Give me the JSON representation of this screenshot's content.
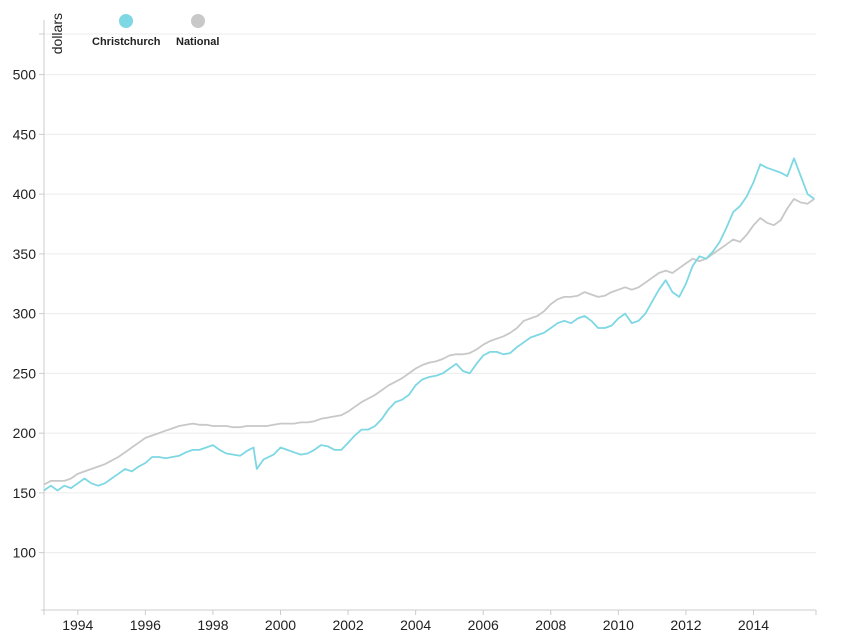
{
  "chart_data": {
    "type": "line",
    "ylabel": "dollars",
    "ylim": [
      52,
      534
    ],
    "xlim": [
      1993.0,
      2015.85
    ],
    "yticks": [
      100,
      150,
      200,
      250,
      300,
      350,
      400,
      450,
      500
    ],
    "xticks": [
      1994,
      1996,
      1998,
      2000,
      2002,
      2004,
      2006,
      2008,
      2010,
      2012,
      2014
    ],
    "grid": true,
    "legend_position": "top-left",
    "series": [
      {
        "name": "Christchurch",
        "color": "#7dd8e4",
        "points": [
          [
            1993.0,
            152
          ],
          [
            1993.2,
            156
          ],
          [
            1993.4,
            152
          ],
          [
            1993.6,
            156
          ],
          [
            1993.8,
            154
          ],
          [
            1994.0,
            158
          ],
          [
            1994.2,
            162
          ],
          [
            1994.4,
            158
          ],
          [
            1994.6,
            156
          ],
          [
            1994.8,
            158
          ],
          [
            1995.0,
            162
          ],
          [
            1995.2,
            166
          ],
          [
            1995.4,
            170
          ],
          [
            1995.6,
            168
          ],
          [
            1995.8,
            172
          ],
          [
            1996.0,
            175
          ],
          [
            1996.2,
            180
          ],
          [
            1996.4,
            180
          ],
          [
            1996.6,
            179
          ],
          [
            1996.8,
            180
          ],
          [
            1997.0,
            181
          ],
          [
            1997.2,
            184
          ],
          [
            1997.4,
            186
          ],
          [
            1997.6,
            186
          ],
          [
            1997.8,
            188
          ],
          [
            1998.0,
            190
          ],
          [
            1998.2,
            186
          ],
          [
            1998.4,
            183
          ],
          [
            1998.6,
            182
          ],
          [
            1998.8,
            181
          ],
          [
            1999.0,
            185
          ],
          [
            1999.2,
            188
          ],
          [
            1999.3,
            170
          ],
          [
            1999.5,
            178
          ],
          [
            1999.8,
            182
          ],
          [
            2000.0,
            188
          ],
          [
            2000.2,
            186
          ],
          [
            2000.4,
            184
          ],
          [
            2000.6,
            182
          ],
          [
            2000.8,
            183
          ],
          [
            2001.0,
            186
          ],
          [
            2001.2,
            190
          ],
          [
            2001.4,
            189
          ],
          [
            2001.6,
            186
          ],
          [
            2001.8,
            186
          ],
          [
            2002.0,
            192
          ],
          [
            2002.2,
            198
          ],
          [
            2002.4,
            203
          ],
          [
            2002.6,
            203
          ],
          [
            2002.8,
            206
          ],
          [
            2003.0,
            212
          ],
          [
            2003.2,
            220
          ],
          [
            2003.4,
            226
          ],
          [
            2003.6,
            228
          ],
          [
            2003.8,
            232
          ],
          [
            2004.0,
            240
          ],
          [
            2004.2,
            245
          ],
          [
            2004.4,
            247
          ],
          [
            2004.6,
            248
          ],
          [
            2004.8,
            250
          ],
          [
            2005.0,
            254
          ],
          [
            2005.2,
            258
          ],
          [
            2005.4,
            252
          ],
          [
            2005.6,
            250
          ],
          [
            2005.8,
            258
          ],
          [
            2006.0,
            265
          ],
          [
            2006.2,
            268
          ],
          [
            2006.4,
            268
          ],
          [
            2006.6,
            266
          ],
          [
            2006.8,
            267
          ],
          [
            2007.0,
            272
          ],
          [
            2007.2,
            276
          ],
          [
            2007.4,
            280
          ],
          [
            2007.6,
            282
          ],
          [
            2007.8,
            284
          ],
          [
            2008.0,
            288
          ],
          [
            2008.2,
            292
          ],
          [
            2008.4,
            294
          ],
          [
            2008.6,
            292
          ],
          [
            2008.8,
            296
          ],
          [
            2009.0,
            298
          ],
          [
            2009.2,
            294
          ],
          [
            2009.4,
            288
          ],
          [
            2009.6,
            288
          ],
          [
            2009.8,
            290
          ],
          [
            2010.0,
            296
          ],
          [
            2010.2,
            300
          ],
          [
            2010.4,
            292
          ],
          [
            2010.6,
            294
          ],
          [
            2010.8,
            300
          ],
          [
            2011.0,
            310
          ],
          [
            2011.2,
            320
          ],
          [
            2011.4,
            328
          ],
          [
            2011.6,
            318
          ],
          [
            2011.8,
            314
          ],
          [
            2012.0,
            325
          ],
          [
            2012.2,
            340
          ],
          [
            2012.4,
            348
          ],
          [
            2012.6,
            346
          ],
          [
            2012.8,
            352
          ],
          [
            2013.0,
            360
          ],
          [
            2013.2,
            372
          ],
          [
            2013.4,
            385
          ],
          [
            2013.6,
            390
          ],
          [
            2013.8,
            398
          ],
          [
            2014.0,
            410
          ],
          [
            2014.2,
            425
          ],
          [
            2014.4,
            422
          ],
          [
            2014.6,
            420
          ],
          [
            2014.8,
            418
          ],
          [
            2015.0,
            415
          ],
          [
            2015.2,
            430
          ],
          [
            2015.4,
            415
          ],
          [
            2015.6,
            400
          ],
          [
            2015.8,
            396
          ]
        ]
      },
      {
        "name": "National",
        "color": "#c8c8c8",
        "points": [
          [
            1993.0,
            157
          ],
          [
            1993.2,
            160
          ],
          [
            1993.4,
            160
          ],
          [
            1993.6,
            160
          ],
          [
            1993.8,
            162
          ],
          [
            1994.0,
            166
          ],
          [
            1994.2,
            168
          ],
          [
            1994.4,
            170
          ],
          [
            1994.6,
            172
          ],
          [
            1994.8,
            174
          ],
          [
            1995.0,
            177
          ],
          [
            1995.2,
            180
          ],
          [
            1995.4,
            184
          ],
          [
            1995.6,
            188
          ],
          [
            1995.8,
            192
          ],
          [
            1996.0,
            196
          ],
          [
            1996.2,
            198
          ],
          [
            1996.4,
            200
          ],
          [
            1996.6,
            202
          ],
          [
            1996.8,
            204
          ],
          [
            1997.0,
            206
          ],
          [
            1997.2,
            207
          ],
          [
            1997.4,
            208
          ],
          [
            1997.6,
            207
          ],
          [
            1997.8,
            207
          ],
          [
            1998.0,
            206
          ],
          [
            1998.2,
            206
          ],
          [
            1998.4,
            206
          ],
          [
            1998.6,
            205
          ],
          [
            1998.8,
            205
          ],
          [
            1999.0,
            206
          ],
          [
            1999.2,
            206
          ],
          [
            1999.4,
            206
          ],
          [
            1999.6,
            206
          ],
          [
            1999.8,
            207
          ],
          [
            2000.0,
            208
          ],
          [
            2000.2,
            208
          ],
          [
            2000.4,
            208
          ],
          [
            2000.6,
            209
          ],
          [
            2000.8,
            209
          ],
          [
            2001.0,
            210
          ],
          [
            2001.2,
            212
          ],
          [
            2001.4,
            213
          ],
          [
            2001.6,
            214
          ],
          [
            2001.8,
            215
          ],
          [
            2002.0,
            218
          ],
          [
            2002.2,
            222
          ],
          [
            2002.4,
            226
          ],
          [
            2002.6,
            229
          ],
          [
            2002.8,
            232
          ],
          [
            2003.0,
            236
          ],
          [
            2003.2,
            240
          ],
          [
            2003.4,
            243
          ],
          [
            2003.6,
            246
          ],
          [
            2003.8,
            250
          ],
          [
            2004.0,
            254
          ],
          [
            2004.2,
            257
          ],
          [
            2004.4,
            259
          ],
          [
            2004.6,
            260
          ],
          [
            2004.8,
            262
          ],
          [
            2005.0,
            265
          ],
          [
            2005.2,
            266
          ],
          [
            2005.4,
            266
          ],
          [
            2005.6,
            267
          ],
          [
            2005.8,
            270
          ],
          [
            2006.0,
            274
          ],
          [
            2006.2,
            277
          ],
          [
            2006.4,
            279
          ],
          [
            2006.6,
            281
          ],
          [
            2006.8,
            284
          ],
          [
            2007.0,
            288
          ],
          [
            2007.2,
            294
          ],
          [
            2007.4,
            296
          ],
          [
            2007.6,
            298
          ],
          [
            2007.8,
            302
          ],
          [
            2008.0,
            308
          ],
          [
            2008.2,
            312
          ],
          [
            2008.4,
            314
          ],
          [
            2008.6,
            314
          ],
          [
            2008.8,
            315
          ],
          [
            2009.0,
            318
          ],
          [
            2009.2,
            316
          ],
          [
            2009.4,
            314
          ],
          [
            2009.6,
            315
          ],
          [
            2009.8,
            318
          ],
          [
            2010.0,
            320
          ],
          [
            2010.2,
            322
          ],
          [
            2010.4,
            320
          ],
          [
            2010.6,
            322
          ],
          [
            2010.8,
            326
          ],
          [
            2011.0,
            330
          ],
          [
            2011.2,
            334
          ],
          [
            2011.4,
            336
          ],
          [
            2011.6,
            334
          ],
          [
            2011.8,
            338
          ],
          [
            2012.0,
            342
          ],
          [
            2012.2,
            346
          ],
          [
            2012.4,
            344
          ],
          [
            2012.6,
            346
          ],
          [
            2012.8,
            350
          ],
          [
            2013.0,
            354
          ],
          [
            2013.2,
            358
          ],
          [
            2013.4,
            362
          ],
          [
            2013.6,
            360
          ],
          [
            2013.8,
            366
          ],
          [
            2014.0,
            374
          ],
          [
            2014.2,
            380
          ],
          [
            2014.4,
            376
          ],
          [
            2014.6,
            374
          ],
          [
            2014.8,
            378
          ],
          [
            2015.0,
            388
          ],
          [
            2015.2,
            396
          ],
          [
            2015.4,
            393
          ],
          [
            2015.6,
            392
          ],
          [
            2015.8,
            396
          ]
        ]
      }
    ]
  }
}
